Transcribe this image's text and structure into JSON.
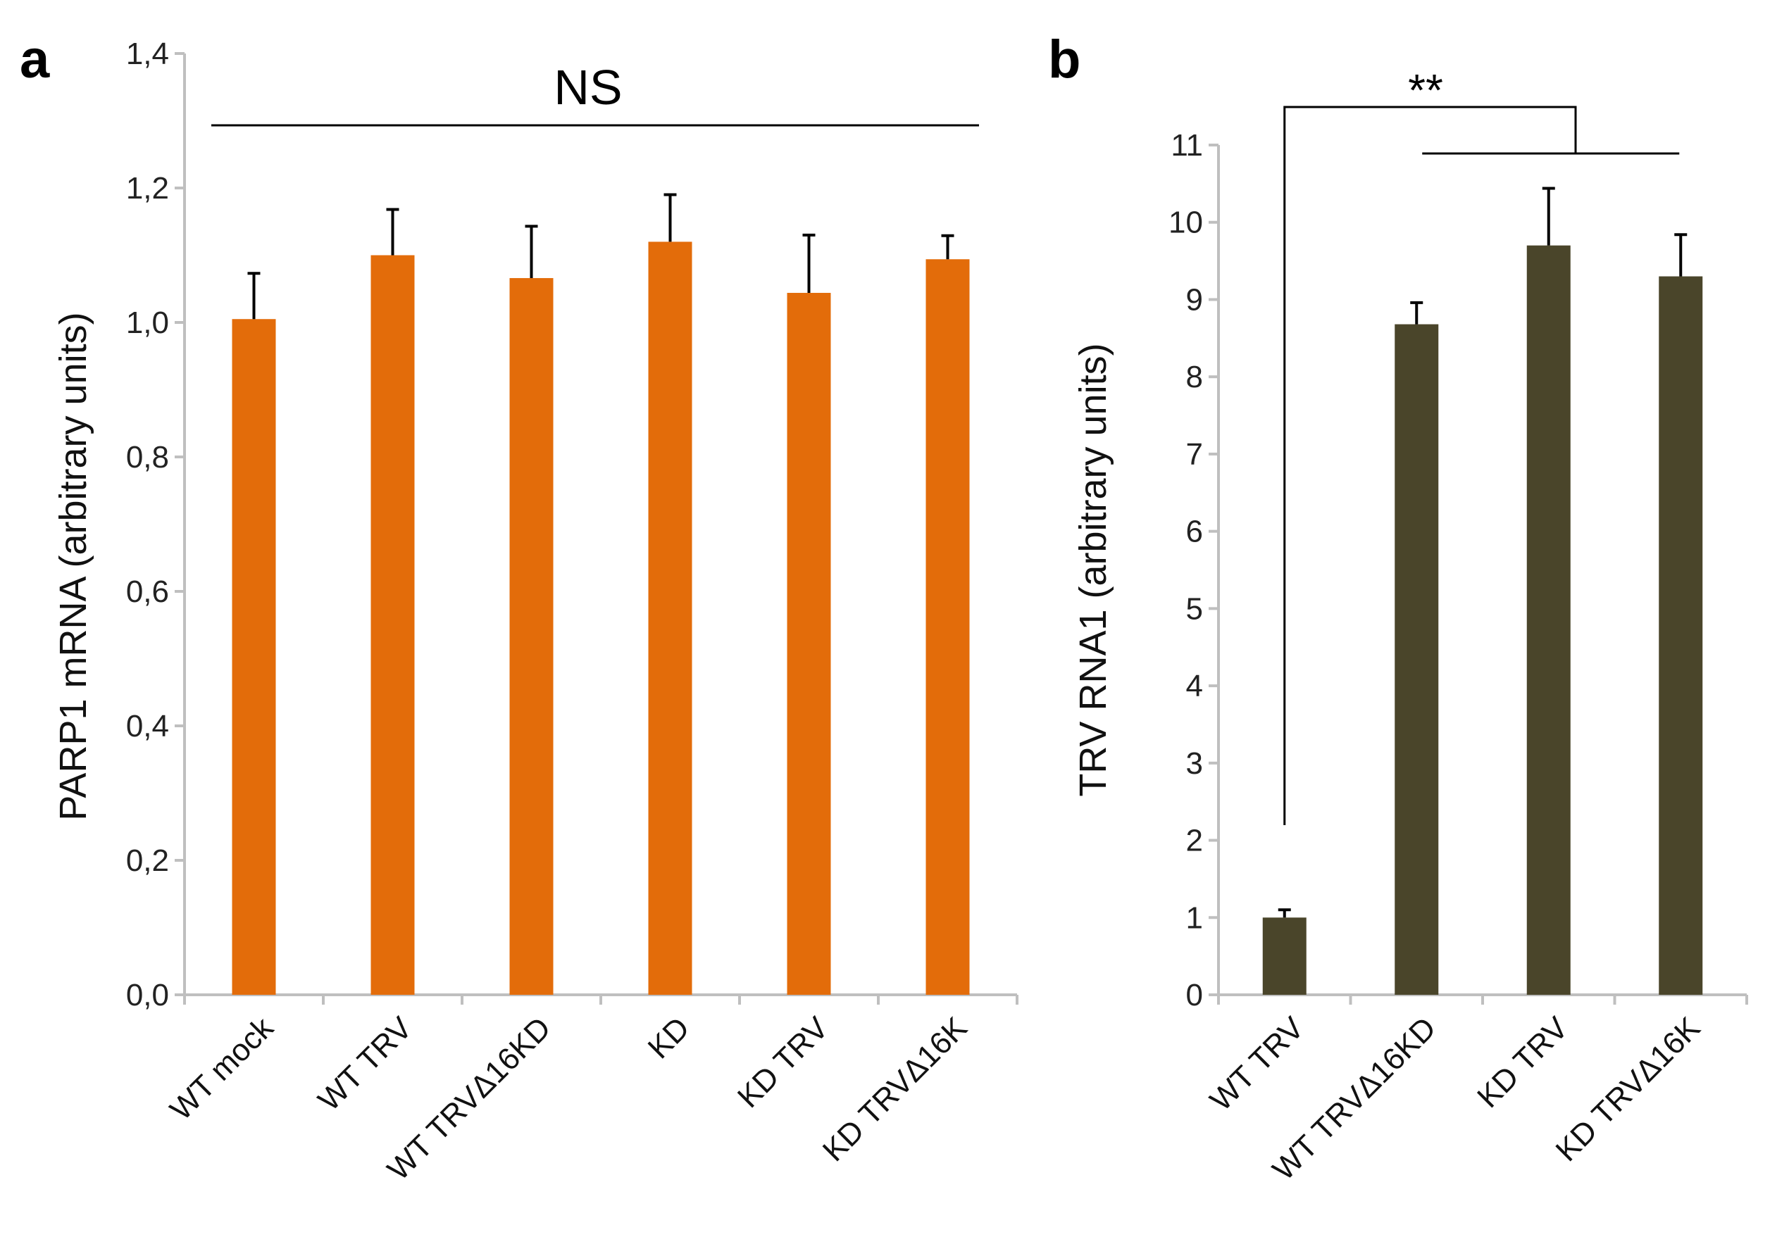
{
  "chart_data": [
    {
      "panel": "a",
      "type": "bar",
      "categories": [
        "WT mock",
        "WT TRV",
        "WT TRVΔ16KD",
        "KD",
        "KD TRV",
        "KD TRVΔ16K"
      ],
      "series": [
        {
          "values": [
            1.005,
            1.1,
            1.066,
            1.12,
            1.044,
            1.094
          ],
          "errors": [
            0.068,
            0.068,
            0.077,
            0.07,
            0.086,
            0.035
          ]
        }
      ],
      "ylabel": "PARP1 mRNA (arbitrary units)",
      "ylim": [
        0,
        1.4
      ],
      "yticks": [
        "0,0",
        "0,2",
        "0,4",
        "0,6",
        "0,8",
        "1,0",
        "1,2",
        "1,4"
      ],
      "ytick_values": [
        0,
        0.2,
        0.4,
        0.6,
        0.8,
        1.0,
        1.2,
        1.4
      ],
      "annotation": "NS",
      "grid": false,
      "bar_color": "#e36c0a"
    },
    {
      "panel": "b",
      "type": "bar",
      "categories": [
        "WT TRV",
        "WT TRVΔ16KD",
        "KD TRV",
        "KD TRVΔ16K"
      ],
      "series": [
        {
          "values": [
            1.0,
            8.68,
            9.7,
            9.3
          ],
          "errors": [
            0.1,
            0.28,
            0.74,
            0.54
          ]
        }
      ],
      "ylabel": "TRV RNA1 (arbitrary units)",
      "ylim": [
        0,
        11
      ],
      "yticks": [
        "0",
        "1",
        "2",
        "3",
        "4",
        "5",
        "6",
        "7",
        "8",
        "9",
        "10",
        "11"
      ],
      "ytick_values": [
        0,
        1,
        2,
        3,
        4,
        5,
        6,
        7,
        8,
        9,
        10,
        11
      ],
      "annotation": "**",
      "grid": false,
      "bar_color": "#4a452a"
    }
  ]
}
